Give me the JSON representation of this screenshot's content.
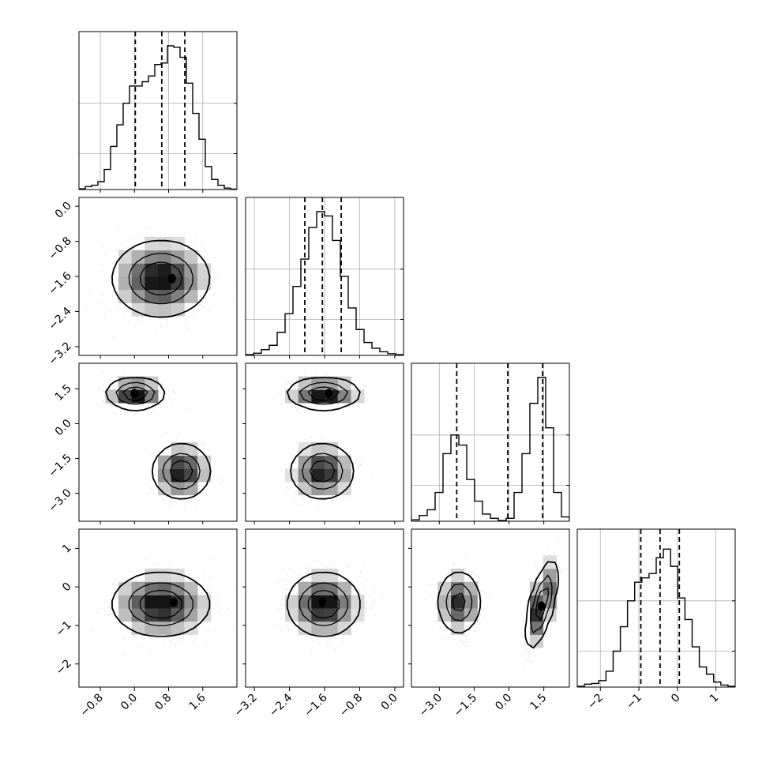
{
  "chart_data": {
    "type": "corner",
    "title": "",
    "grid": true,
    "legend": "none",
    "colors": {
      "line": "#000000",
      "grid": "#b0b0b0",
      "scatter": "#9a9a9a",
      "density_dark": "#000000",
      "density_light": "#ffffff"
    },
    "params": [
      {
        "name": "",
        "range": [
          -1.3,
          2.4
        ],
        "quantiles": [
          0.02,
          0.64,
          1.18
        ],
        "bottom_ticks": [
          -0.8,
          0.0,
          0.8,
          1.6
        ],
        "bottom_tick_labels": [
          "−0.8",
          "0.0",
          "0.8",
          "1.6"
        ],
        "hist": [
          0.005,
          0.02,
          0.03,
          0.055,
          0.14,
          0.3,
          0.45,
          0.6,
          0.72,
          0.72,
          0.75,
          0.79,
          0.87,
          0.88,
          1.0,
          0.99,
          0.92,
          0.74,
          0.53,
          0.35,
          0.16,
          0.07,
          0.03,
          0.01,
          0.003
        ]
      },
      {
        "name": "",
        "range": [
          -3.4,
          0.2
        ],
        "quantiles": [
          -2.05,
          -1.65,
          -1.22
        ],
        "left_ticks": [
          0.0,
          -0.8,
          -1.6,
          -2.4,
          -3.2
        ],
        "left_tick_labels": [
          "0.0",
          "−0.8",
          "−1.6",
          "−2.4",
          "−3.2"
        ],
        "bottom_ticks": [
          -3.2,
          -2.4,
          -1.6,
          -0.8,
          0.0
        ],
        "bottom_tick_labels": [
          "−3.2",
          "−2.4",
          "−1.6",
          "−0.8",
          "0.0"
        ],
        "hist": [
          0.005,
          0.015,
          0.04,
          0.07,
          0.16,
          0.29,
          0.48,
          0.67,
          0.89,
          1.0,
          0.97,
          0.8,
          0.55,
          0.33,
          0.18,
          0.09,
          0.05,
          0.025,
          0.012,
          0.005
        ]
      },
      {
        "name": "",
        "range": [
          -4.2,
          2.6
        ],
        "quantiles": [
          -2.25,
          -0.05,
          1.45
        ],
        "left_ticks": [
          1.5,
          0.0,
          -1.5,
          -3.0
        ],
        "left_tick_labels": [
          "1.5",
          "0.0",
          "−1.5",
          "−3.0"
        ],
        "bottom_ticks": [
          -3.0,
          -1.5,
          0.0,
          1.5
        ],
        "bottom_tick_labels": [
          "−3.0",
          "−1.5",
          "0.0",
          "1.5"
        ],
        "hist": [
          0.01,
          0.04,
          0.08,
          0.2,
          0.47,
          0.6,
          0.53,
          0.29,
          0.14,
          0.05,
          0.02,
          0.005,
          0.02,
          0.2,
          0.47,
          0.82,
          1.0,
          0.65,
          0.2,
          0.03
        ]
      },
      {
        "name": "",
        "range": [
          -2.6,
          1.5
        ],
        "quantiles": [
          -0.95,
          -0.45,
          0.05
        ],
        "left_ticks": [
          1,
          0,
          -1,
          -2
        ],
        "left_tick_labels": [
          "1",
          "0",
          "−1",
          "−2"
        ],
        "bottom_ticks": [
          -2,
          -1,
          0,
          1
        ],
        "bottom_tick_labels": [
          "−2",
          "−1",
          "0",
          "1"
        ],
        "hist": [
          0.005,
          0.02,
          0.025,
          0.045,
          0.11,
          0.25,
          0.42,
          0.6,
          0.73,
          0.76,
          0.79,
          0.9,
          0.96,
          0.84,
          0.62,
          0.47,
          0.28,
          0.14,
          0.09,
          0.035,
          0.014,
          0.005
        ]
      }
    ],
    "joint": {
      "1_0": {
        "blobs": [
          {
            "mx": 0.62,
            "my": -1.65,
            "sx": 0.55,
            "sy": 0.42,
            "r": 0,
            "w": 1
          }
        ],
        "peak": [
          0.88,
          -1.65
        ]
      },
      "2_0": {
        "blobs": [
          {
            "mx": 0.02,
            "my": 1.3,
            "sx": 0.33,
            "sy": 0.33,
            "r": 0,
            "w": 0.52
          },
          {
            "mx": 1.1,
            "my": -2.05,
            "sx": 0.33,
            "sy": 0.58,
            "r": 0,
            "w": 0.48
          }
        ],
        "peak": [
          0.0,
          1.3
        ]
      },
      "2_1": {
        "blobs": [
          {
            "mx": -1.62,
            "my": 1.3,
            "sx": 0.4,
            "sy": 0.33,
            "r": 0,
            "w": 0.52
          },
          {
            "mx": -1.65,
            "my": -2.05,
            "sx": 0.35,
            "sy": 0.58,
            "r": 0,
            "w": 0.48
          }
        ],
        "peak": [
          -1.5,
          1.3
        ]
      },
      "3_0": {
        "blobs": [
          {
            "mx": 0.62,
            "my": -0.45,
            "sx": 0.55,
            "sy": 0.4,
            "r": 0,
            "w": 1
          }
        ],
        "peak": [
          0.92,
          -0.4
        ]
      },
      "3_1": {
        "blobs": [
          {
            "mx": -1.62,
            "my": -0.45,
            "sx": 0.4,
            "sy": 0.4,
            "r": 0,
            "w": 1
          }
        ],
        "peak": [
          -1.65,
          -0.4
        ]
      },
      "3_2": {
        "blobs": [
          {
            "mx": -2.15,
            "my": -0.4,
            "sx": 0.45,
            "sy": 0.4,
            "r": 0,
            "w": 0.45
          },
          {
            "mx": 1.4,
            "my": -0.45,
            "sx": 0.33,
            "sy": 0.55,
            "r": 0.65,
            "w": 0.55
          }
        ],
        "peak": [
          1.4,
          -0.5
        ]
      }
    }
  }
}
